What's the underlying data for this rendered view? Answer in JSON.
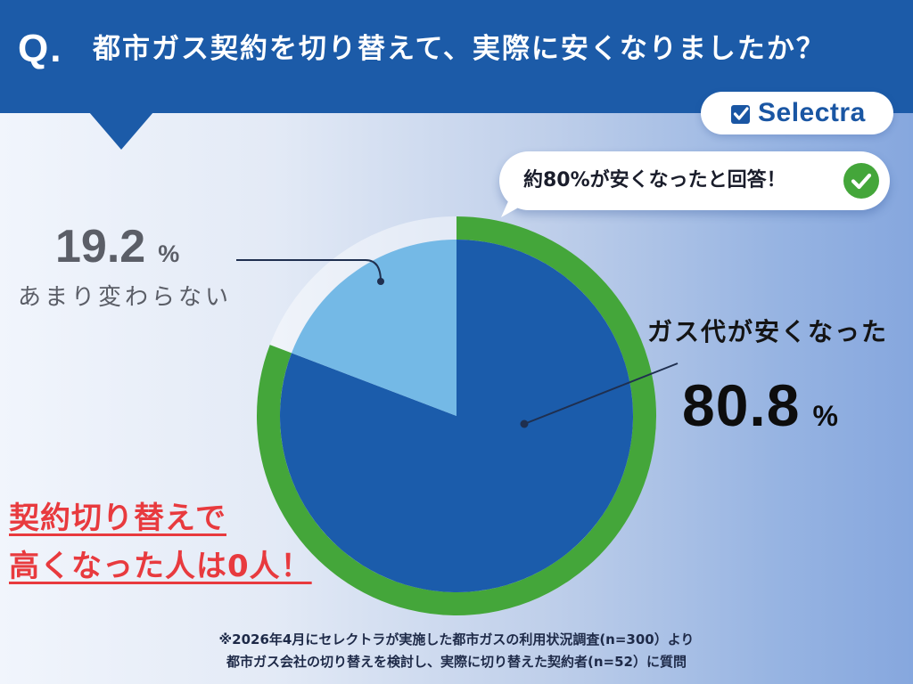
{
  "header": {
    "q_label": "Q."
  },
  "brand": {
    "name": "Selectra",
    "icon": "checkbox-icon"
  },
  "callout": {
    "text": "約80%が安くなったと回答！",
    "icon": "check-circle-icon"
  },
  "chart_data": {
    "type": "pie",
    "title": "都市ガス契約を切り替えて、実際に安くなりましたか？",
    "unit": "%",
    "slices": [
      {
        "label": "ガス代が安くなった",
        "value": 80.8,
        "color": "#1b5cab",
        "highlighted": true
      },
      {
        "label": "あまり変わらない",
        "value": 19.2,
        "color": "#74b9e6",
        "highlighted": false
      }
    ],
    "highlight_ring_color": "#44a63a"
  },
  "emphasis": {
    "lines": [
      "契約切り替えで",
      "高くなった人は0人！"
    ]
  },
  "footnote": {
    "lines": [
      "※2026年4月にセレクトラが実施した都市ガスの利用状況調査(n=300）より",
      "都市ガス会社の切り替えを検討し、実際に切り替えた契約者(n=52）に質問"
    ]
  },
  "colors": {
    "primary": "#1c5ba8",
    "brand_blue": "#1a56a3",
    "accent_green": "#44a63a",
    "emphasis_red": "#e83a3e",
    "label_gray": "#5b5e67"
  }
}
